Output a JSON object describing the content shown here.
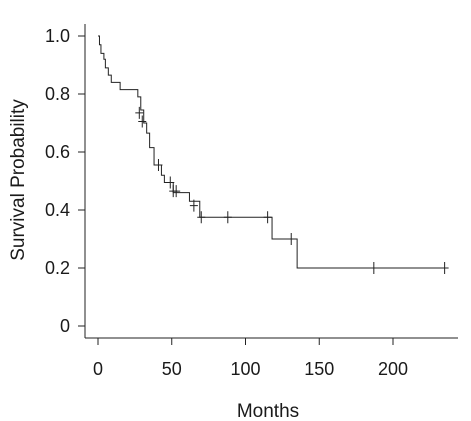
{
  "chart_data": {
    "type": "line",
    "title": "",
    "xlabel": "Months",
    "ylabel": "Survival Probability",
    "xlim": [
      0,
      240
    ],
    "ylim": [
      0,
      1.0
    ],
    "x_ticks": [
      0,
      50,
      100,
      150,
      200
    ],
    "x_tick_labels": [
      "0",
      "50",
      "100",
      "150",
      "200"
    ],
    "y_ticks": [
      0,
      0.2,
      0.4,
      0.6,
      0.8,
      1.0
    ],
    "y_tick_labels": [
      "0",
      "0.2",
      "0.4",
      "0.6",
      "0.8",
      "1.0"
    ],
    "grid": false,
    "legend": "none",
    "series": [
      {
        "style": "step-post",
        "color": "#222222",
        "x": [
          0,
          1,
          2,
          4,
          5,
          7,
          9,
          15,
          27,
          29,
          31,
          33,
          35,
          38,
          43,
          45,
          51,
          62,
          69,
          118,
          135,
          237
        ],
        "y": [
          1.0,
          0.97,
          0.94,
          0.92,
          0.89,
          0.865,
          0.84,
          0.815,
          0.79,
          0.745,
          0.7,
          0.665,
          0.615,
          0.555,
          0.52,
          0.495,
          0.46,
          0.43,
          0.375,
          0.3,
          0.2,
          0.2
        ]
      }
    ],
    "censored": [
      {
        "x": 28,
        "y": 0.735
      },
      {
        "x": 30,
        "y": 0.705
      },
      {
        "x": 41,
        "y": 0.555
      },
      {
        "x": 49,
        "y": 0.495
      },
      {
        "x": 51,
        "y": 0.465
      },
      {
        "x": 53,
        "y": 0.465
      },
      {
        "x": 65,
        "y": 0.415
      },
      {
        "x": 70,
        "y": 0.375
      },
      {
        "x": 88,
        "y": 0.375
      },
      {
        "x": 115,
        "y": 0.375
      },
      {
        "x": 131,
        "y": 0.3
      },
      {
        "x": 187,
        "y": 0.2
      },
      {
        "x": 235,
        "y": 0.2
      }
    ]
  }
}
